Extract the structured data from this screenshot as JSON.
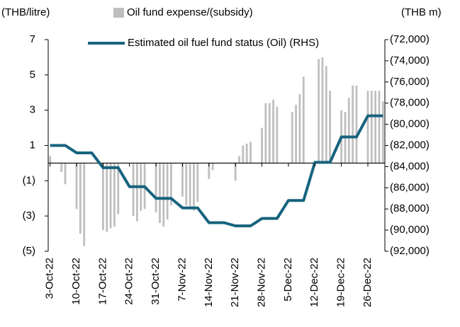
{
  "chart_data": {
    "type": "bar",
    "y_unit_label": "(THB/litre)",
    "y2_unit_label": "(THB m)",
    "categories": [
      "3-Oct-22",
      null,
      null,
      null,
      null,
      null,
      null,
      "10-Oct-22",
      null,
      null,
      null,
      null,
      null,
      null,
      "17-Oct-22",
      null,
      null,
      null,
      null,
      null,
      null,
      "24-Oct-22",
      null,
      null,
      null,
      null,
      null,
      null,
      "31-Oct-22",
      null,
      null,
      null,
      null,
      null,
      null,
      "7-Nov-22",
      null,
      null,
      null,
      null,
      null,
      null,
      "14-Nov-22",
      null,
      null,
      null,
      null,
      null,
      null,
      "21-Nov-22",
      null,
      null,
      null,
      null,
      null,
      null,
      "28-Nov-22",
      null,
      null,
      null,
      null,
      null,
      null,
      "5-Dec-22",
      null,
      null,
      null,
      null,
      null,
      null,
      "12-Dec-22",
      null,
      null,
      null,
      null,
      null,
      null,
      "19-Dec-22",
      null,
      null,
      null,
      null,
      null,
      null,
      "26-Dec-22",
      null,
      null,
      null,
      null
    ],
    "series": [
      {
        "name": "Oil fund expense/(subsidy)",
        "type": "bar",
        "color": "#bfbfbf",
        "values": [
          0.4,
          null,
          null,
          -0.5,
          -1.2,
          null,
          null,
          -2.6,
          -4.0,
          -4.7,
          null,
          null,
          null,
          null,
          -3.8,
          -3.9,
          -3.7,
          -3.6,
          -2.9,
          null,
          null,
          null,
          -3.0,
          -3.3,
          -2.7,
          -2.6,
          null,
          null,
          -2.8,
          -3.4,
          -3.6,
          -3.2,
          -2.4,
          null,
          null,
          -1.9,
          -2.4,
          -2.6,
          -2.7,
          -2.2,
          null,
          null,
          -0.9,
          -0.4,
          null,
          null,
          null,
          null,
          null,
          -1.0,
          0.4,
          1.0,
          1.1,
          1.2,
          null,
          null,
          2.0,
          3.4,
          3.4,
          3.6,
          3.2,
          null,
          null,
          null,
          2.9,
          3.3,
          3.9,
          4.9,
          null,
          null,
          null,
          5.9,
          6.0,
          5.5,
          4.1,
          null,
          null,
          3.0,
          2.9,
          3.7,
          4.4,
          4.4,
          null,
          null,
          4.1,
          4.1,
          4.1,
          4.1,
          3.5
        ]
      },
      {
        "name": "Estimated oil fuel fund status (Oil) (RHS)",
        "type": "line",
        "axis": "y2",
        "color": "#17637e",
        "values": [
          -82000,
          -82000,
          -82000,
          -82000,
          -82000,
          -82233,
          -82467,
          -82700,
          -82700,
          -82700,
          -82700,
          -82700,
          -83167,
          -83633,
          -84100,
          -84100,
          -84100,
          -84100,
          -84100,
          -84700,
          -85300,
          -85900,
          -85900,
          -85900,
          -85900,
          -85900,
          -86267,
          -86633,
          -87000,
          -87000,
          -87000,
          -87000,
          -87000,
          -87300,
          -87600,
          -87900,
          -87900,
          -87900,
          -87900,
          -87900,
          -88367,
          -88833,
          -89300,
          -89300,
          -89300,
          -89300,
          -89300,
          -89400,
          -89500,
          -89600,
          -89600,
          -89600,
          -89600,
          -89600,
          -89367,
          -89133,
          -88900,
          -88900,
          -88900,
          -88900,
          -88900,
          -88333,
          -87767,
          -87200,
          -87200,
          -87200,
          -87200,
          -87200,
          -86000,
          -84800,
          -83600,
          -83600,
          -83600,
          -83600,
          -83600,
          -82800,
          -82000,
          -81200,
          -81200,
          -81200,
          -81200,
          -81200,
          -80533,
          -79867,
          -79200,
          -79200,
          -79200,
          -79200,
          -79200
        ]
      }
    ],
    "ylim": [
      -5,
      7
    ],
    "yticks": [
      7,
      5,
      3,
      1,
      {
        "value": -1,
        "label": "(1)"
      },
      {
        "value": -3,
        "label": "(3)"
      },
      {
        "value": -5,
        "label": "(5)"
      }
    ],
    "y2lim": [
      -92000,
      -72000
    ],
    "y2ticks": [
      {
        "value": -72000,
        "label": "(72,000)"
      },
      {
        "value": -74000,
        "label": "(74,000)"
      },
      {
        "value": -76000,
        "label": "(76,000)"
      },
      {
        "value": -78000,
        "label": "(78,000)"
      },
      {
        "value": -80000,
        "label": "(80,000)"
      },
      {
        "value": -82000,
        "label": "(82,000)"
      },
      {
        "value": -84000,
        "label": "(84,000)"
      },
      {
        "value": -86000,
        "label": "(86,000)"
      },
      {
        "value": -88000,
        "label": "(88,000)"
      },
      {
        "value": -90000,
        "label": "(90,000)"
      },
      {
        "value": -92000,
        "label": "(92,000)"
      }
    ],
    "grid": false
  }
}
